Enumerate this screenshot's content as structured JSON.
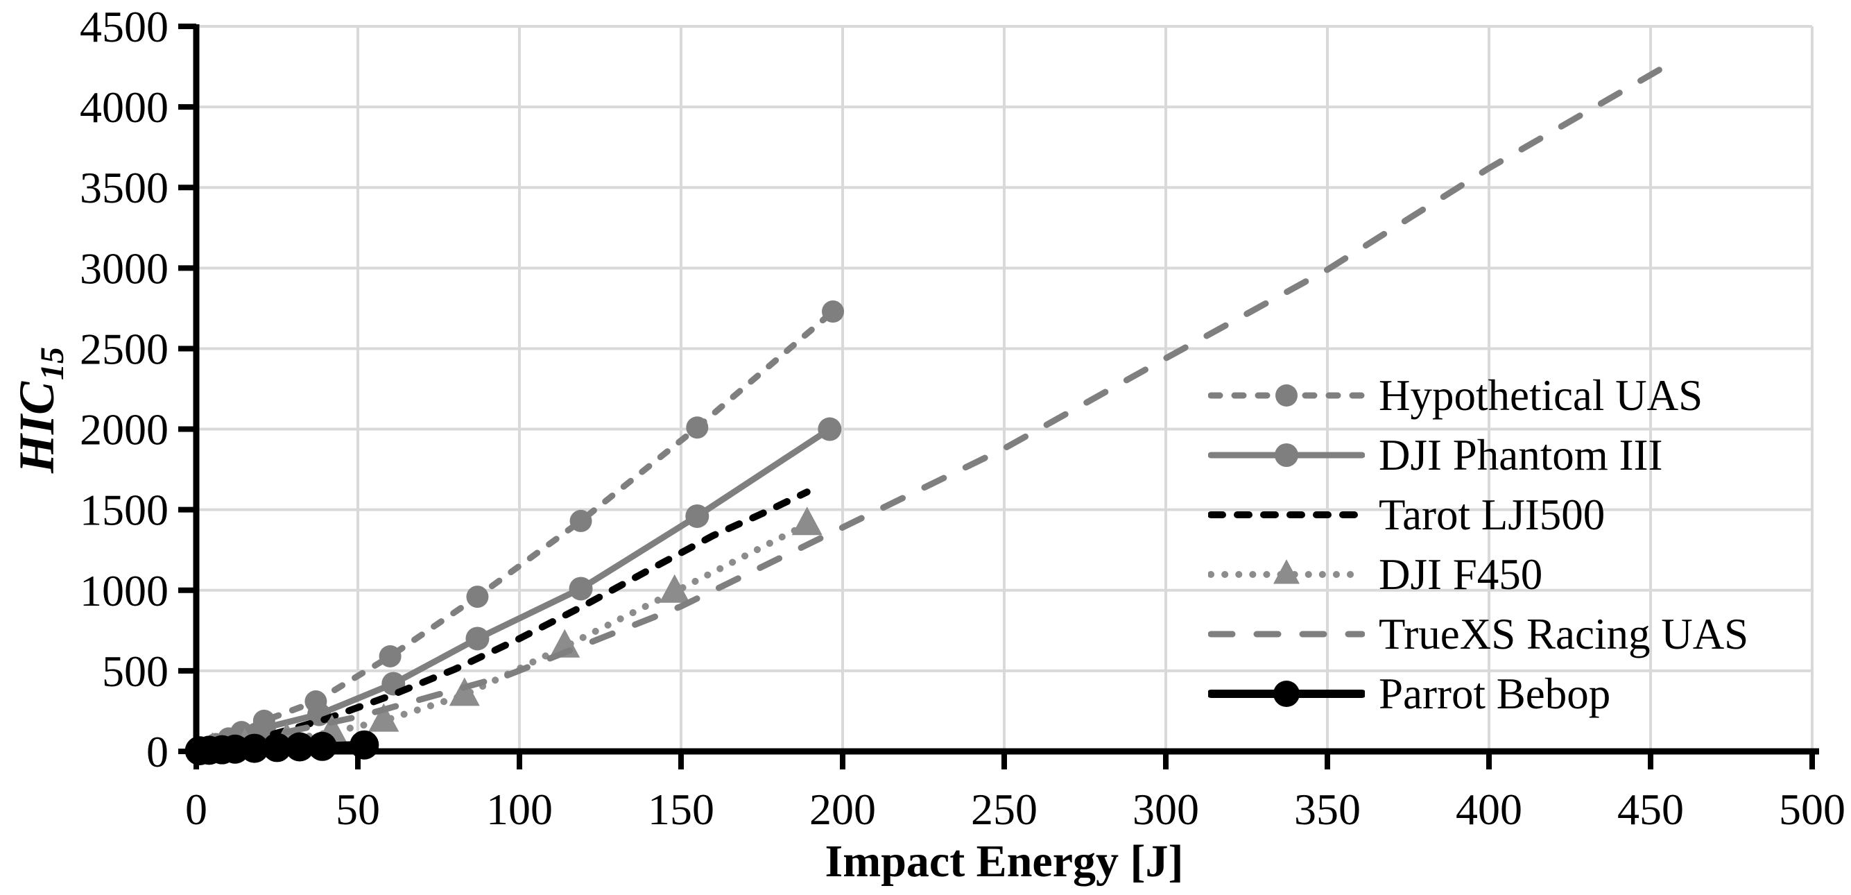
{
  "chart_data": {
    "type": "line",
    "title": "",
    "xlabel": "Impact Energy [J]",
    "ylabel_main": "HIC",
    "ylabel_sub": "15",
    "xlim": [
      0,
      500
    ],
    "ylim": [
      0,
      4500
    ],
    "x_ticks": [
      0,
      50,
      100,
      150,
      200,
      250,
      300,
      350,
      400,
      450,
      500
    ],
    "y_ticks": [
      0,
      500,
      1000,
      1500,
      2000,
      2500,
      3000,
      3500,
      4000,
      4500
    ],
    "grid": true,
    "grid_color": "#D9D9D9",
    "axis_color": "#000000",
    "legend_position": "inside-middle-right",
    "series": [
      {
        "name": "Hypothetical UAS",
        "color": "#7F7F7F",
        "line": "dashed",
        "line_width": 9,
        "marker": "circle",
        "marker_size": 16,
        "x": [
          3,
          6,
          10,
          14,
          21,
          37,
          60,
          87,
          119,
          155,
          197
        ],
        "y": [
          20,
          45,
          80,
          120,
          190,
          310,
          590,
          960,
          1430,
          2010,
          2730
        ]
      },
      {
        "name": "DJI Phantom III",
        "color": "#7F7F7F",
        "line": "solid",
        "line_width": 9,
        "marker": "circle",
        "marker_size": 17,
        "x": [
          3,
          6,
          10,
          14,
          21,
          38,
          61,
          87,
          119,
          155,
          196
        ],
        "y": [
          15,
          30,
          55,
          90,
          145,
          230,
          420,
          700,
          1010,
          1460,
          2000
        ]
      },
      {
        "name": "Tarot LJI500",
        "color": "#000000",
        "line": "dashed",
        "line_width": 10,
        "marker": "none",
        "marker_size": 0,
        "x": [
          0,
          20,
          40,
          60,
          80,
          100,
          120,
          140,
          160,
          175,
          189
        ],
        "y": [
          0,
          85,
          200,
          345,
          510,
          700,
          905,
          1125,
          1340,
          1475,
          1610
        ]
      },
      {
        "name": "DJI F450",
        "color": "#8C8C8C",
        "line": "dotted",
        "line_width": 10,
        "marker": "triangle",
        "marker_size": 22,
        "x": [
          5,
          15,
          28,
          42,
          58,
          83,
          114,
          148,
          189
        ],
        "y": [
          10,
          35,
          70,
          120,
          190,
          350,
          650,
          990,
          1410
        ]
      },
      {
        "name": "TrueXS Racing UAS",
        "color": "#7F7F7F",
        "line": "long-dash",
        "line_width": 9,
        "marker": "none",
        "marker_size": 0,
        "x": [
          0,
          50,
          96,
          150,
          200,
          250,
          300,
          350,
          400,
          457
        ],
        "y": [
          0,
          215,
          470,
          900,
          1390,
          1880,
          2440,
          2990,
          3620,
          4280
        ]
      },
      {
        "name": "Parrot Bebop",
        "color": "#000000",
        "line": "solid",
        "line_width": 12,
        "marker": "circle",
        "marker_size": 21,
        "x": [
          1,
          4,
          8,
          12,
          18,
          25,
          32,
          39,
          52
        ],
        "y": [
          4,
          7,
          10,
          14,
          19,
          24,
          28,
          31,
          40
        ]
      }
    ]
  }
}
